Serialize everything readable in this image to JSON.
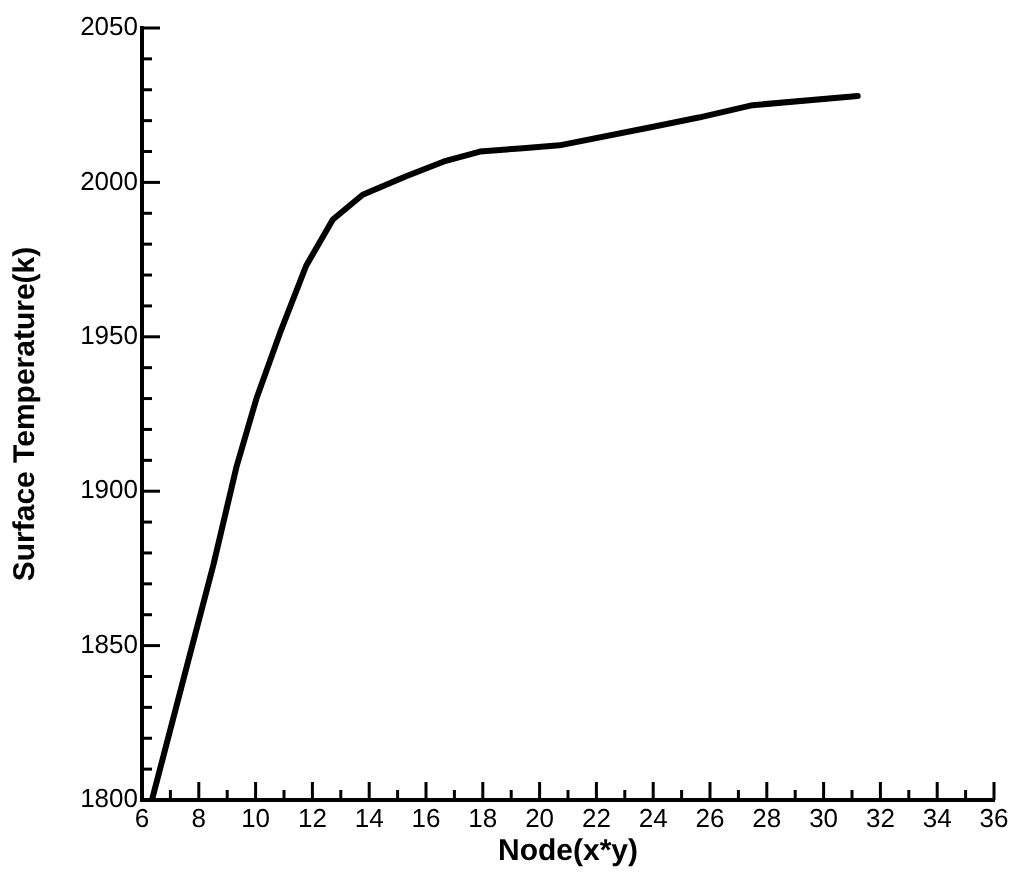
{
  "chart_data": {
    "type": "line",
    "xlabel": "Node(x*y)",
    "ylabel": "Surface Temperature(k)",
    "x": [
      6.35,
      7.57,
      8.51,
      9.33,
      10.03,
      10.85,
      11.78,
      12.72,
      13.77,
      15.3,
      16.7,
      17.9,
      19.3,
      20.7,
      24.0,
      25.6,
      27.5,
      31.2
    ],
    "series": [
      {
        "color": "#000000",
        "values": [
          1800,
          1843,
          1876,
          1908,
          1930,
          1951,
          1973,
          1988,
          1996,
          2002,
          2007,
          2010,
          2011,
          2012,
          2018,
          2021,
          2025,
          2028
        ]
      }
    ],
    "xlim": [
      6,
      36
    ],
    "ylim": [
      1800,
      2050
    ],
    "xticks": [
      6,
      {
        "value": 7,
        "label": null
      },
      8,
      {
        "value": 9,
        "label": null
      },
      10,
      {
        "value": 11,
        "label": null
      },
      12,
      {
        "value": 13,
        "label": null
      },
      14,
      {
        "value": 15,
        "label": null
      },
      16,
      {
        "value": 17,
        "label": null
      },
      18,
      {
        "value": 19,
        "label": null
      },
      20,
      {
        "value": 21,
        "label": null
      },
      22,
      {
        "value": 23,
        "label": null
      },
      24,
      {
        "value": 25,
        "label": null
      },
      26,
      {
        "value": 27,
        "label": null
      },
      28,
      {
        "value": 29,
        "label": null
      },
      30,
      {
        "value": 31,
        "label": null
      },
      32,
      {
        "value": 33,
        "label": null
      },
      34,
      {
        "value": 35,
        "label": null
      },
      36
    ],
    "yticks": [
      1800,
      {
        "value": 1810,
        "label": null
      },
      {
        "value": 1820,
        "label": null
      },
      {
        "value": 1830,
        "label": null
      },
      {
        "value": 1840,
        "label": null
      },
      1850,
      {
        "value": 1860,
        "label": null
      },
      {
        "value": 1870,
        "label": null
      },
      {
        "value": 1880,
        "label": null
      },
      {
        "value": 1890,
        "label": null
      },
      1900,
      {
        "value": 1910,
        "label": null
      },
      {
        "value": 1920,
        "label": null
      },
      {
        "value": 1930,
        "label": null
      },
      {
        "value": 1940,
        "label": null
      },
      1950,
      {
        "value": 1960,
        "label": null
      },
      {
        "value": 1970,
        "label": null
      },
      {
        "value": 1980,
        "label": null
      },
      {
        "value": 1990,
        "label": null
      },
      2000,
      {
        "value": 2010,
        "label": null
      },
      {
        "value": 2020,
        "label": null
      },
      {
        "value": 2030,
        "label": null
      },
      {
        "value": 2040,
        "label": null
      },
      2050
    ],
    "grid": false,
    "legend": false,
    "marker": "none",
    "line_style": "solid"
  }
}
